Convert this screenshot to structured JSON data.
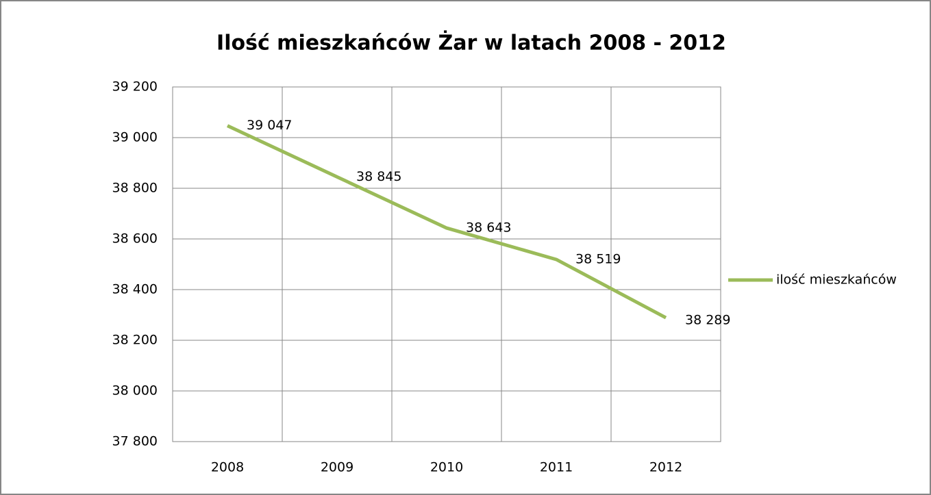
{
  "chart_data": {
    "type": "line",
    "title": "Ilość mieszkańców Żar w latach 2008 - 2012",
    "categories": [
      "2008",
      "2009",
      "2010",
      "2011",
      "2012"
    ],
    "series": [
      {
        "name": "ilość mieszkańców",
        "color": "#9bbb59",
        "values": [
          39047,
          38845,
          38643,
          38519,
          38289
        ],
        "value_labels": [
          "39 047",
          "38 845",
          "38 643",
          "38 519",
          "38 289"
        ]
      }
    ],
    "ylim": [
      37800,
      39200
    ],
    "yticks": [
      {
        "value": 37800,
        "label": "37 800"
      },
      {
        "value": 38000,
        "label": "38 000"
      },
      {
        "value": 38200,
        "label": "38 200"
      },
      {
        "value": 38400,
        "label": "38 400"
      },
      {
        "value": 38600,
        "label": "38 600"
      },
      {
        "value": 38800,
        "label": "38 800"
      },
      {
        "value": 39000,
        "label": "39 000"
      },
      {
        "value": 39200,
        "label": "39 200"
      }
    ],
    "grid": true,
    "legend": "right"
  }
}
